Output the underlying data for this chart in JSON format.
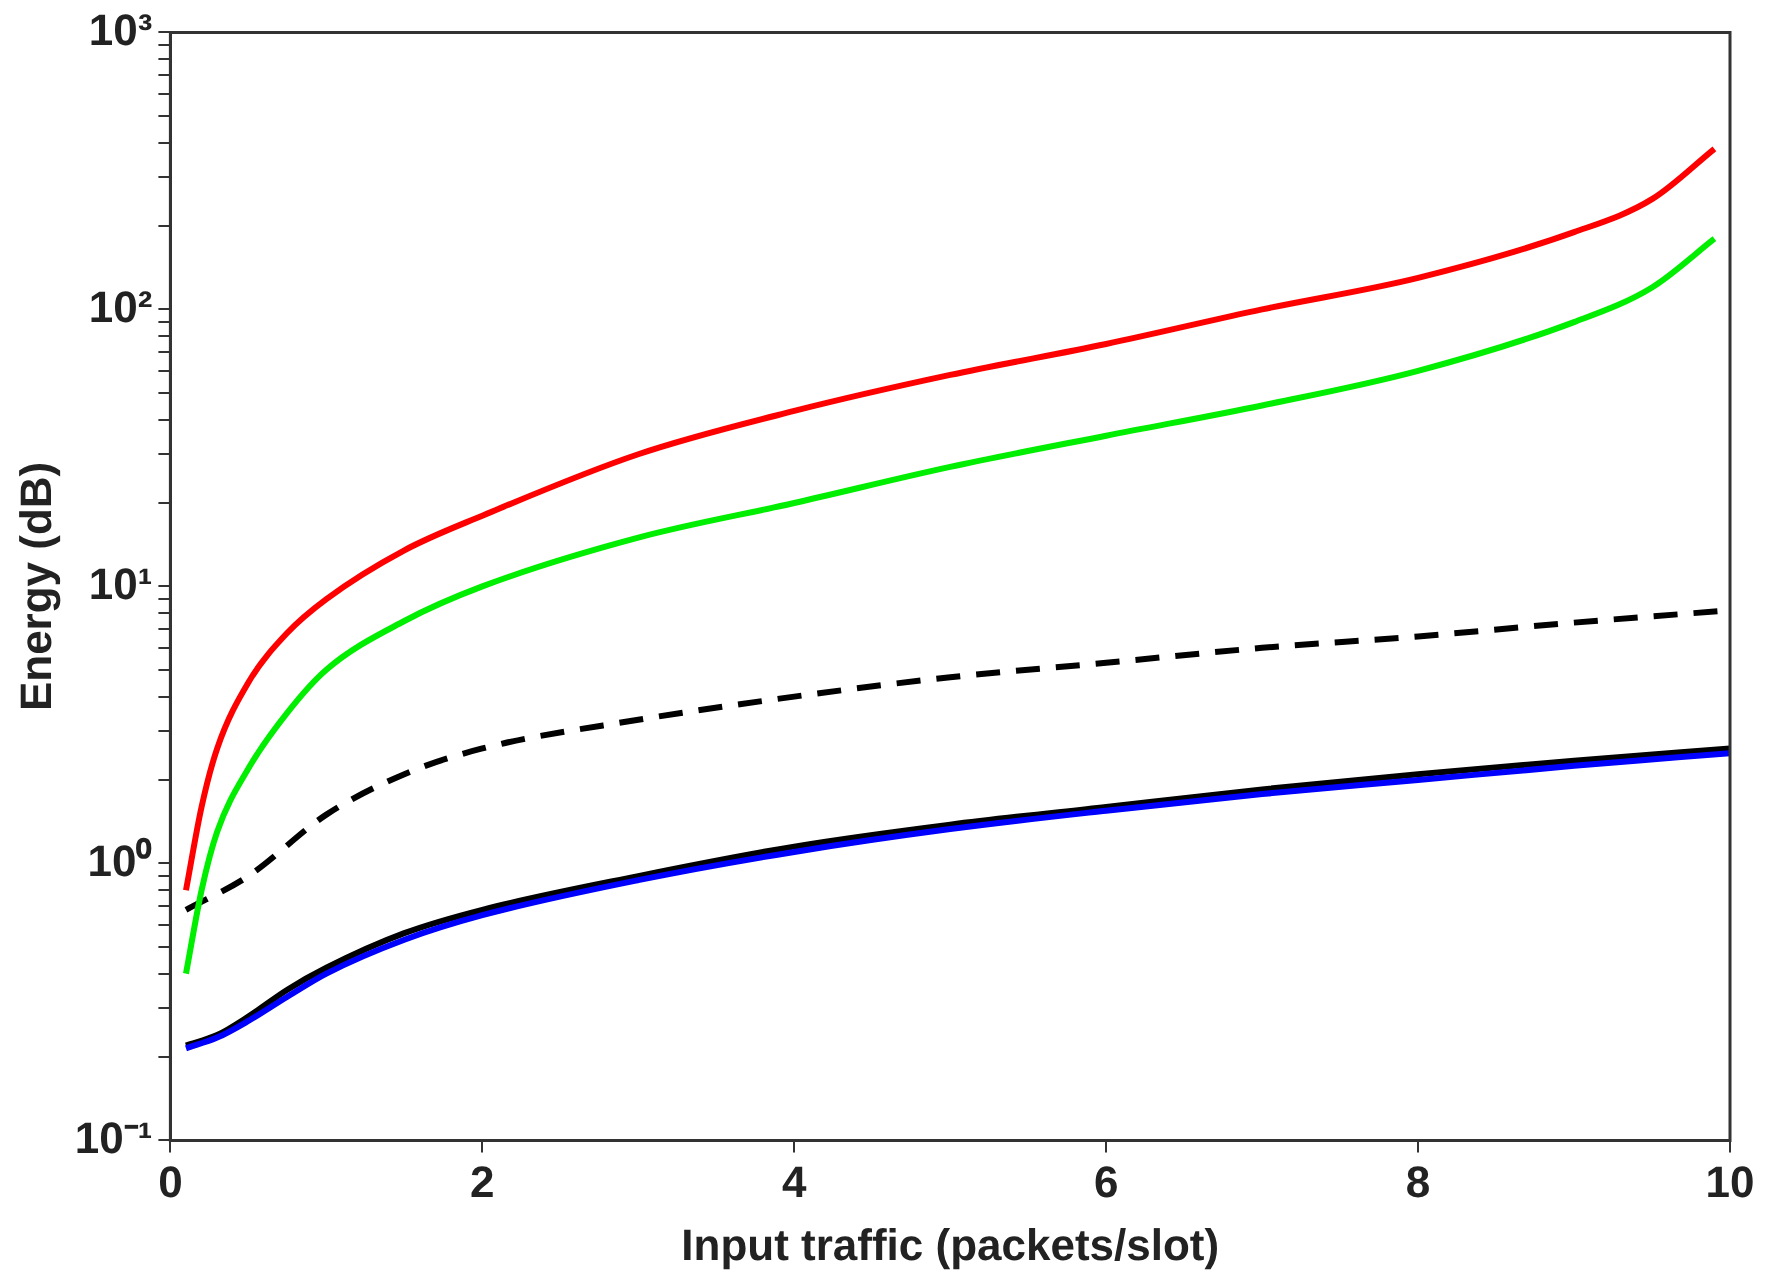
{
  "chart_data": {
    "type": "line",
    "xlabel": "Input traffic (packets/slot)",
    "ylabel": "Energy (dB)",
    "log": "y",
    "grid": false,
    "legend": false,
    "marker": "none",
    "xlim": [
      0,
      10
    ],
    "xticks": [
      0,
      2,
      4,
      6,
      8,
      10
    ],
    "ylim": [
      0.1,
      1000
    ],
    "yticks": [
      {
        "value": 0.1,
        "label": "10⁻¹"
      },
      {
        "value": 0.2,
        "label": null
      },
      {
        "value": 0.3,
        "label": null
      },
      {
        "value": 0.4,
        "label": null
      },
      {
        "value": 0.5,
        "label": null
      },
      {
        "value": 0.6,
        "label": null
      },
      {
        "value": 0.7,
        "label": null
      },
      {
        "value": 0.8,
        "label": null
      },
      {
        "value": 0.9,
        "label": null
      },
      {
        "value": 1,
        "label": "10⁰"
      },
      {
        "value": 2,
        "label": null
      },
      {
        "value": 3,
        "label": null
      },
      {
        "value": 4,
        "label": null
      },
      {
        "value": 5,
        "label": null
      },
      {
        "value": 6,
        "label": null
      },
      {
        "value": 7,
        "label": null
      },
      {
        "value": 8,
        "label": null
      },
      {
        "value": 9,
        "label": null
      },
      {
        "value": 10,
        "label": "10¹"
      },
      {
        "value": 20,
        "label": null
      },
      {
        "value": 30,
        "label": null
      },
      {
        "value": 40,
        "label": null
      },
      {
        "value": 50,
        "label": null
      },
      {
        "value": 60,
        "label": null
      },
      {
        "value": 70,
        "label": null
      },
      {
        "value": 80,
        "label": null
      },
      {
        "value": 90,
        "label": null
      },
      {
        "value": 100,
        "label": "10²"
      },
      {
        "value": 200,
        "label": null
      },
      {
        "value": 300,
        "label": null
      },
      {
        "value": 400,
        "label": null
      },
      {
        "value": 500,
        "label": null
      },
      {
        "value": 600,
        "label": null
      },
      {
        "value": 700,
        "label": null
      },
      {
        "value": 800,
        "label": null
      },
      {
        "value": 900,
        "label": null
      },
      {
        "value": 1000,
        "label": "10³"
      }
    ],
    "series": [
      {
        "color": "#ff0000",
        "line_style": "solid",
        "x": [
          0.1,
          0.2,
          0.3,
          0.5,
          0.75,
          1,
          1.5,
          2,
          3,
          4,
          5,
          6,
          7,
          8,
          9,
          9.5,
          9.9
        ],
        "values": [
          0.8,
          1.6,
          2.6,
          4.5,
          6.8,
          9,
          13.5,
          18,
          30,
          43,
          58,
          75,
          100,
          130,
          190,
          250,
          380
        ]
      },
      {
        "color": "#00ee00",
        "line_style": "solid",
        "x": [
          0.1,
          0.2,
          0.3,
          0.5,
          0.75,
          1,
          1.5,
          2,
          3,
          4,
          5,
          6,
          7,
          8,
          9,
          9.5,
          9.9
        ],
        "values": [
          0.4,
          0.8,
          1.3,
          2.2,
          3.5,
          5,
          7.5,
          10,
          15,
          20,
          27,
          35,
          45,
          60,
          90,
          120,
          180
        ]
      },
      {
        "color": "#000000",
        "line_style": "dashed",
        "x": [
          0.1,
          0.5,
          1,
          1.5,
          2,
          3,
          4,
          5,
          6,
          7,
          8,
          9,
          10
        ],
        "values": [
          0.68,
          0.9,
          1.5,
          2.1,
          2.6,
          3.3,
          4,
          4.7,
          5.3,
          6,
          6.6,
          7.4,
          8.2
        ]
      },
      {
        "color": "#0000ff",
        "line_style": "solid",
        "x": [
          0.1,
          0.3,
          0.5,
          0.75,
          1,
          1.5,
          2,
          3,
          4,
          5,
          6,
          7,
          8,
          9,
          10
        ],
        "values": [
          0.215,
          0.235,
          0.27,
          0.33,
          0.4,
          0.53,
          0.65,
          0.87,
          1.1,
          1.33,
          1.55,
          1.78,
          2.0,
          2.25,
          2.5
        ]
      },
      {
        "color": "#000000",
        "line_style": "solid",
        "x": [
          0.1,
          0.3,
          0.5,
          0.75,
          1,
          1.5,
          2,
          3,
          4,
          5,
          6,
          7,
          8,
          9,
          10
        ],
        "values": [
          0.22,
          0.24,
          0.28,
          0.35,
          0.42,
          0.56,
          0.68,
          0.9,
          1.15,
          1.38,
          1.6,
          1.85,
          2.1,
          2.35,
          2.6
        ]
      }
    ]
  }
}
